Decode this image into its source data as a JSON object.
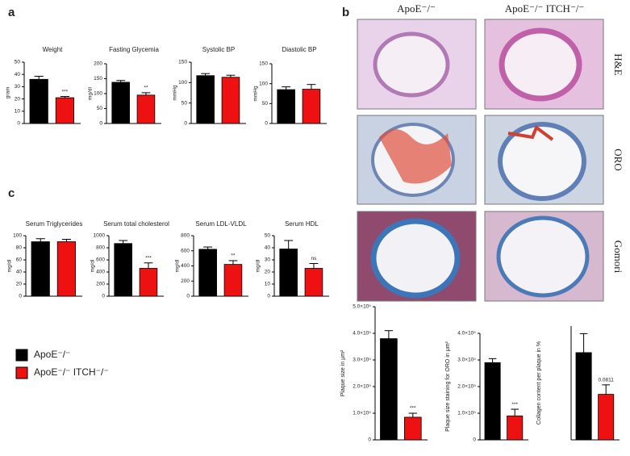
{
  "panels": {
    "a": "a",
    "b": "b",
    "c": "c"
  },
  "histology": {
    "columns": [
      "ApoE⁻/⁻",
      "ApoE⁻/⁻ ITCH⁻/⁻"
    ],
    "rows": [
      "H&E",
      "ORO",
      "Gomori"
    ]
  },
  "legend": [
    {
      "name": "ApoE⁻/⁻",
      "color": "#000000"
    },
    {
      "name": "ApoE⁻/⁻ ITCH⁻/⁻",
      "color": "#ee1111"
    }
  ],
  "chart_data": [
    {
      "type": "bar",
      "title": "Weight",
      "ylabel": "gram",
      "values": [
        36,
        21
      ],
      "errors": [
        2.5,
        1
      ],
      "ylim": [
        0,
        50
      ],
      "yticks": [
        0,
        10,
        20,
        30,
        40,
        50
      ],
      "annotation": "***"
    },
    {
      "type": "bar",
      "title": "Fasting Glycemia",
      "ylabel": "mg/dl",
      "values": [
        138,
        95
      ],
      "errors": [
        6,
        8
      ],
      "ylim": [
        0,
        200
      ],
      "yticks": [
        0,
        50,
        100,
        150,
        200
      ],
      "annotation": "**"
    },
    {
      "type": "bar",
      "title": "Systolic BP",
      "ylabel": "mmHg",
      "values": [
        117,
        113
      ],
      "errors": [
        5,
        5
      ],
      "ylim": [
        0,
        150
      ],
      "yticks": [
        0,
        50,
        100,
        150
      ]
    },
    {
      "type": "bar",
      "title": "Diastolic BP",
      "ylabel": "mmHg",
      "values": [
        85,
        86
      ],
      "errors": [
        7,
        12
      ],
      "ylim": [
        0,
        150
      ],
      "yticks": [
        0,
        50,
        100,
        150
      ]
    },
    {
      "type": "bar",
      "title": "Serum Triglycerides",
      "ylabel": "mg/dl",
      "values": [
        90,
        90
      ],
      "errors": [
        5,
        4
      ],
      "ylim": [
        0,
        100
      ],
      "yticks": [
        0,
        20,
        40,
        60,
        80,
        100
      ]
    },
    {
      "type": "bar",
      "title": "Serum total cholesterol",
      "ylabel": "mg/dl",
      "values": [
        870,
        460
      ],
      "errors": [
        50,
        90
      ],
      "ylim": [
        0,
        1000
      ],
      "yticks": [
        0,
        200,
        400,
        600,
        800,
        1000
      ],
      "annotation": "***"
    },
    {
      "type": "bar",
      "title": "Serum LDL-VLDL",
      "ylabel": "mg/dl",
      "values": [
        620,
        420
      ],
      "errors": [
        30,
        50
      ],
      "ylim": [
        0,
        800
      ],
      "yticks": [
        0,
        200,
        400,
        600,
        800
      ],
      "annotation": "**"
    },
    {
      "type": "bar",
      "title": "Serum  HDL",
      "ylabel": "mg/dl",
      "values": [
        39,
        23
      ],
      "errors": [
        7,
        4
      ],
      "ylim": [
        0,
        50
      ],
      "yticks": [
        0,
        10,
        20,
        30,
        40,
        50
      ],
      "annotation": "ns"
    },
    {
      "type": "bar",
      "ylabel": "Plaque size in μm²",
      "values": [
        380000,
        85000
      ],
      "errors": [
        30000,
        15000
      ],
      "ylim": [
        0,
        500000
      ],
      "yticks": [
        0,
        {
          "value": 100000,
          "label": "1.0×10⁵"
        },
        {
          "value": 200000,
          "label": "2.0×10⁵"
        },
        {
          "value": 300000,
          "label": "3.0×10⁵"
        },
        {
          "value": 400000,
          "label": "4.0×10⁵"
        },
        {
          "value": 500000,
          "label": "5.0×10⁵"
        }
      ],
      "annotation": "***"
    },
    {
      "type": "bar",
      "ylabel": "Plaque size staining for ORO in μm²",
      "values": [
        290000,
        90000
      ],
      "errors": [
        15000,
        25000
      ],
      "ylim": [
        0,
        400000
      ],
      "yticks": [
        0,
        {
          "value": 100000,
          "label": "1.0×10⁵"
        },
        {
          "value": 200000,
          "label": "2.0×10⁵"
        },
        {
          "value": 300000,
          "label": "3.0×10⁵"
        },
        {
          "value": 400000,
          "label": "4.0×10⁵"
        }
      ],
      "annotation": "***"
    },
    {
      "type": "bar",
      "ylabel": "Collagen content per plaque in %",
      "values": [
        23,
        12
      ],
      "errors": [
        5,
        2.5
      ],
      "ylim": [
        0,
        30
      ],
      "annotation": "0.0811"
    }
  ]
}
